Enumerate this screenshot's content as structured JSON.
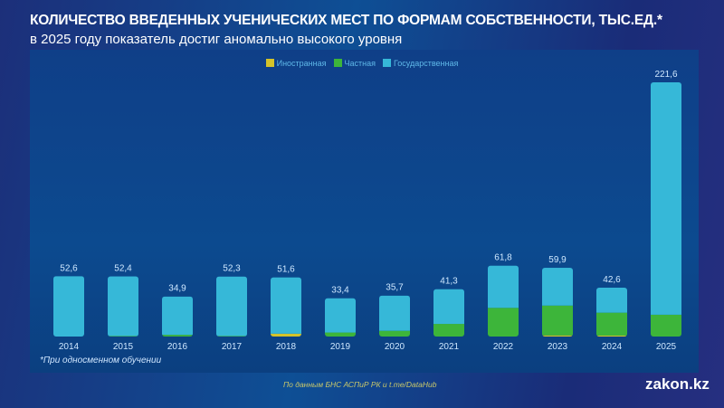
{
  "header": {
    "title": "КОЛИЧЕСТВО ВВЕДЕННЫХ УЧЕНИЧЕСКИХ МЕСТ ПО ФОРМАМ СОБСТВЕННОСТИ, ТЫС.ЕД.*",
    "subtitle": "в 2025 году показатель достиг аномально высокого уровня"
  },
  "footer": {
    "note": "*При односменном обучении",
    "source": "По данным БНС АСПиР РК и t.me/DataHub",
    "logo": "zakon.kz"
  },
  "chart_data": {
    "type": "bar",
    "stacked": true,
    "categories": [
      "2014",
      "2015",
      "2016",
      "2017",
      "2018",
      "2019",
      "2020",
      "2021",
      "2022",
      "2023",
      "2024",
      "2025"
    ],
    "totals": [
      "52,6",
      "52,4",
      "34,9",
      "52,3",
      "51,6",
      "33,4",
      "35,7",
      "41,3",
      "61,8",
      "59,9",
      "42,6",
      "221,6"
    ],
    "series": [
      {
        "name": "Иностранная",
        "color": "#d4c32a",
        "values": [
          0,
          0,
          0,
          0,
          2.5,
          0,
          0,
          0,
          0,
          1,
          0.8,
          0
        ]
      },
      {
        "name": "Частная",
        "color": "#3db53a",
        "values": [
          0,
          0.5,
          1.5,
          0.5,
          0,
          3.5,
          5,
          11,
          25,
          26,
          20,
          19
        ]
      },
      {
        "name": "Государственная",
        "color": "#36b8d8",
        "values": [
          52.6,
          51.9,
          33.4,
          51.8,
          49.1,
          29.9,
          30.7,
          30.3,
          36.8,
          32.9,
          21.8,
          202.6
        ]
      }
    ],
    "ylim": [
      0,
      221.6
    ],
    "grid": false,
    "legend": "top-center"
  }
}
